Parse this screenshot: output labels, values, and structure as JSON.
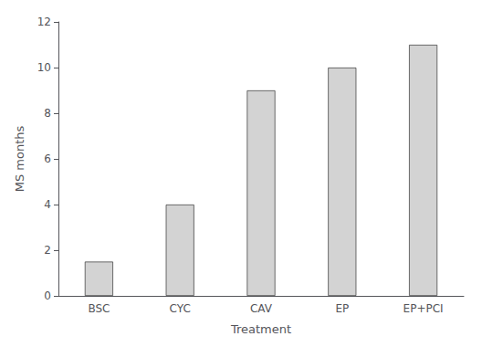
{
  "chart_data": {
    "type": "bar",
    "categories": [
      "BSC",
      "CYC",
      "CAV",
      "EP",
      "EP+PCI"
    ],
    "values": [
      1.5,
      4.0,
      9.0,
      10.0,
      11.0
    ],
    "color": "#d3d3d3",
    "xlabel": "Treatment",
    "ylabel": "MS months",
    "ylim": [
      0,
      12
    ],
    "yticks": [
      0,
      2,
      4,
      6,
      8,
      10,
      12
    ],
    "grid": false
  }
}
